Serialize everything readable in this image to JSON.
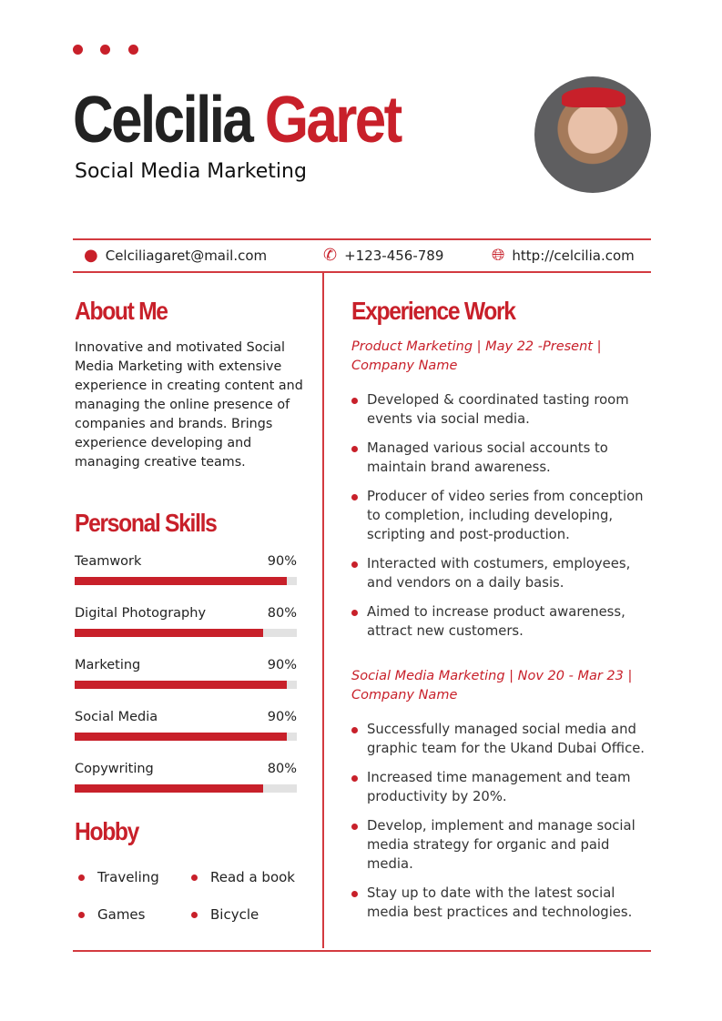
{
  "header": {
    "first_name": "Celcilia",
    "last_name": "Garet",
    "title": "Social Media Marketing"
  },
  "contact": {
    "email": "Celciliagaret@mail.com",
    "phone": "+123-456-789",
    "website": "http://celcilia.com"
  },
  "about": {
    "heading": "About Me",
    "text": "Innovative and motivated Social Media Marketing with extensive experience in creating content and managing the online presence of companies and brands. Brings experience developing and managing creative teams."
  },
  "skills": {
    "heading": "Personal Skills",
    "items": [
      {
        "name": "Teamwork",
        "label": "90%",
        "value": 90
      },
      {
        "name": "Digital Photography",
        "label": "80%",
        "value": 80
      },
      {
        "name": "Marketing",
        "label": "90%",
        "value": 90
      },
      {
        "name": "Social Media",
        "label": "90%",
        "value": 90
      },
      {
        "name": "Copywriting",
        "label": "80%",
        "value": 80
      }
    ]
  },
  "hobby": {
    "heading": "Hobby",
    "items": [
      "Traveling",
      "Read a book",
      "Games",
      "Bicycle"
    ]
  },
  "experience": {
    "heading": "Experience Work",
    "jobs": [
      {
        "role": "Product Marketing | May 22 -Present |",
        "company": "Company Name",
        "bullets": [
          "Developed & coordinated tasting room events via social media.",
          "Managed various social accounts to maintain brand awareness.",
          "Producer of video series from conception to completion, including developing, scripting and post-production.",
          "Interacted with costumers, employees, and vendors on a daily basis.",
          "Aimed to increase product awareness, attract new customers."
        ]
      },
      {
        "role": "Social Media Marketing | Nov 20 - Mar 23 |",
        "company": "Company Name",
        "bullets": [
          "Successfully managed social media and graphic team for the Ukand Dubai Office.",
          "Increased time management and team productivity by 20%.",
          "Develop, implement and manage social media strategy for organic and paid media.",
          "Stay up to date with the latest social media best practices and technologies."
        ]
      }
    ]
  },
  "colors": {
    "accent": "#c8202a"
  }
}
